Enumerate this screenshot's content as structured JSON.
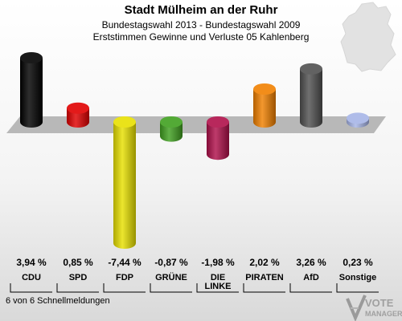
{
  "header": {
    "title": "Stadt Mülheim an der Ruhr",
    "subtitle": "Bundestagswahl 2013 - Bundestagswahl 2009",
    "subtitle2": "Erststimmen Gewinne und Verluste 05 Kahlenberg"
  },
  "footer": {
    "text": "6 von 6 Schnellmeldungen"
  },
  "brand": {
    "line1": "VOTE",
    "line2": "MANAGER"
  },
  "chart_data": {
    "type": "bar",
    "title": "Stadt Mülheim an der Ruhr",
    "categories": [
      "CDU",
      "SPD",
      "FDP",
      "GRÜNE",
      "DIE LINKE",
      "PIRATEN",
      "AfD",
      "Sonstige"
    ],
    "category_lines": [
      [
        "CDU"
      ],
      [
        "SPD"
      ],
      [
        "FDP"
      ],
      [
        "GRÜNE"
      ],
      [
        "DIE",
        "LINKE"
      ],
      [
        "PIRATEN"
      ],
      [
        "AfD"
      ],
      [
        "Sonstige"
      ]
    ],
    "values": [
      3.94,
      0.85,
      -7.44,
      -0.87,
      -1.98,
      2.02,
      3.26,
      0.23
    ],
    "value_labels": [
      "3,94 %",
      "0,85 %",
      "-7,44 %",
      "-0,87 %",
      "-1,98 %",
      "2,02 %",
      "3,26 %",
      "0,23 %"
    ],
    "colors": [
      "#000000",
      "#e00000",
      "#e8e000",
      "#40a020",
      "#b0104a",
      "#f08000",
      "#505050",
      "#a6b4e6"
    ],
    "xlabel": "",
    "ylabel": "",
    "grid": false,
    "legend": "none"
  }
}
